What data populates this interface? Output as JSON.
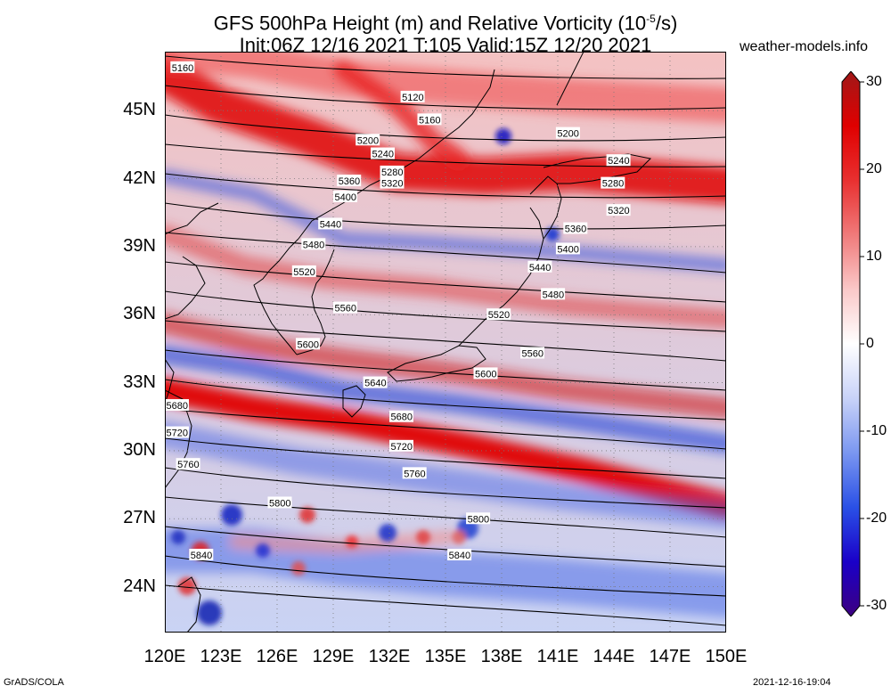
{
  "title": {
    "line1_main": "GFS 500hPa Height (m) and Relative Vorticity (10",
    "line1_exp": "-5",
    "line1_end": "/s)",
    "line2": "Init:06Z 12/16 2021 T:105 Valid:15Z 12/20 2021"
  },
  "site": "weather-models.info",
  "footer": {
    "left": "GrADS/COLA",
    "right": "2021-12-16-19:04"
  },
  "lat_labels": [
    "45N",
    "42N",
    "39N",
    "36N",
    "33N",
    "30N",
    "27N",
    "24N"
  ],
  "lon_labels": [
    "120E",
    "123E",
    "126E",
    "129E",
    "132E",
    "135E",
    "138E",
    "141E",
    "144E",
    "147E",
    "150E"
  ],
  "colorbar": {
    "ticks": [
      "30",
      "20",
      "10",
      "0",
      "-10",
      "-20",
      "-30"
    ],
    "colors": [
      "#3d0080",
      "#1a00c8",
      "#2a50e6",
      "#7a96f0",
      "#c8d2f8",
      "#ffffff",
      "#fac8c8",
      "#f07a7a",
      "#e83030",
      "#e00000",
      "#a01818"
    ]
  },
  "contours": [
    "5120",
    "5160",
    "5200",
    "5240",
    "5280",
    "5320",
    "5360",
    "5400",
    "5440",
    "5480",
    "5520",
    "5560",
    "5600",
    "5640",
    "5680",
    "5720",
    "5760",
    "5800",
    "5840"
  ],
  "contour_labels": [
    {
      "text": "5160",
      "lon": 120.3,
      "lat": 46.9
    },
    {
      "text": "5120",
      "lon": 132.6,
      "lat": 45.6
    },
    {
      "text": "5160",
      "lon": 133.5,
      "lat": 44.6
    },
    {
      "text": "5200",
      "lon": 130.2,
      "lat": 43.7
    },
    {
      "text": "5200",
      "lon": 140.9,
      "lat": 44.0
    },
    {
      "text": "5240",
      "lon": 131.0,
      "lat": 43.1
    },
    {
      "text": "5240",
      "lon": 143.6,
      "lat": 42.8
    },
    {
      "text": "5280",
      "lon": 131.5,
      "lat": 42.3
    },
    {
      "text": "5280",
      "lon": 143.3,
      "lat": 41.8
    },
    {
      "text": "5320",
      "lon": 131.5,
      "lat": 41.8
    },
    {
      "text": "5320",
      "lon": 143.6,
      "lat": 40.6
    },
    {
      "text": "5360",
      "lon": 129.2,
      "lat": 41.9
    },
    {
      "text": "5360",
      "lon": 141.3,
      "lat": 39.8
    },
    {
      "text": "5400",
      "lon": 129.0,
      "lat": 41.2
    },
    {
      "text": "5400",
      "lon": 140.9,
      "lat": 38.9
    },
    {
      "text": "5440",
      "lon": 128.2,
      "lat": 40.0
    },
    {
      "text": "5440",
      "lon": 139.4,
      "lat": 38.1
    },
    {
      "text": "5480",
      "lon": 127.3,
      "lat": 39.1
    },
    {
      "text": "5480",
      "lon": 140.1,
      "lat": 36.9
    },
    {
      "text": "5520",
      "lon": 126.8,
      "lat": 37.9
    },
    {
      "text": "5520",
      "lon": 137.2,
      "lat": 36.0
    },
    {
      "text": "5560",
      "lon": 129.0,
      "lat": 36.3
    },
    {
      "text": "5560",
      "lon": 139.0,
      "lat": 34.3
    },
    {
      "text": "5600",
      "lon": 127.0,
      "lat": 34.7
    },
    {
      "text": "5600",
      "lon": 136.5,
      "lat": 33.4
    },
    {
      "text": "5640",
      "lon": 130.6,
      "lat": 33.0
    },
    {
      "text": "5680",
      "lon": 120.0,
      "lat": 32.0
    },
    {
      "text": "5680",
      "lon": 132.0,
      "lat": 31.5
    },
    {
      "text": "5720",
      "lon": 120.0,
      "lat": 30.8
    },
    {
      "text": "5720",
      "lon": 132.0,
      "lat": 30.2
    },
    {
      "text": "5760",
      "lon": 120.6,
      "lat": 29.4
    },
    {
      "text": "5760",
      "lon": 132.7,
      "lat": 29.0
    },
    {
      "text": "5800",
      "lon": 125.5,
      "lat": 27.7
    },
    {
      "text": "5800",
      "lon": 136.1,
      "lat": 27.0
    },
    {
      "text": "5840",
      "lon": 121.3,
      "lat": 25.4
    },
    {
      "text": "5840",
      "lon": 135.1,
      "lat": 25.4
    }
  ]
}
